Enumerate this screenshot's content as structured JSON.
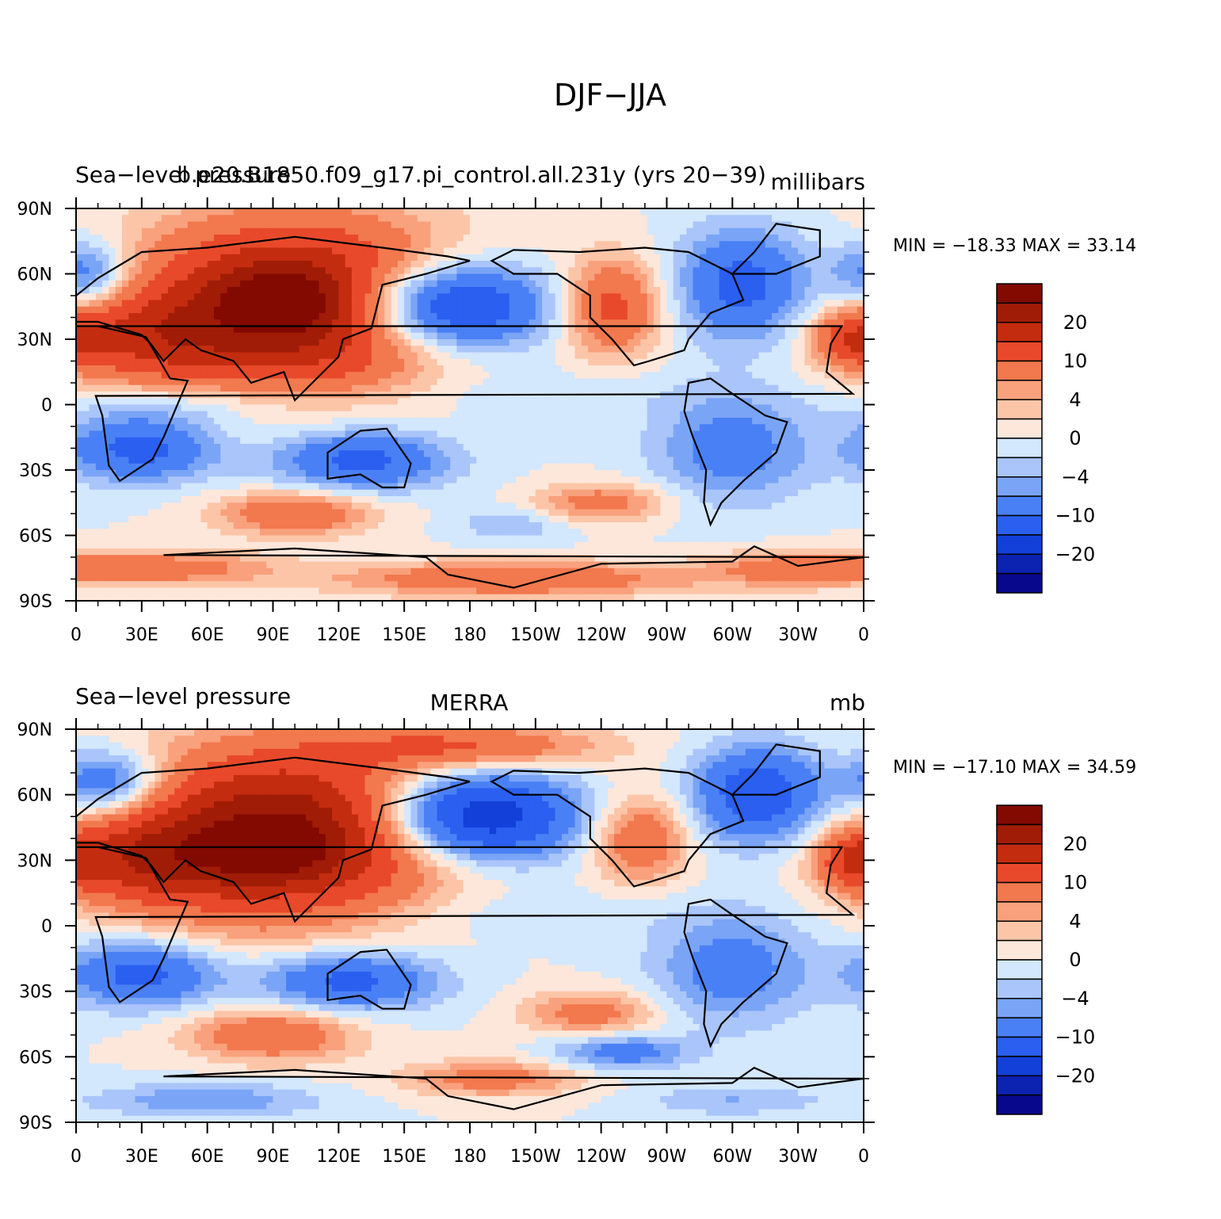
{
  "figure_title": "DJF−JJA",
  "colors": {
    "levels": [
      "#08088c",
      "#0c22b0",
      "#1240d8",
      "#2a5ff0",
      "#4a80f5",
      "#7aa4f5",
      "#a9c5fa",
      "#d3e7fd",
      "#fde7da",
      "#fcc5a8",
      "#f9a17c",
      "#f2784e",
      "#e8492a",
      "#c42c10",
      "#a01c06",
      "#820a00"
    ],
    "land_outline": "#000000"
  },
  "chart_data": [
    {
      "type": "heatmap",
      "id": "model",
      "left_title": "Sea−level pressure",
      "center_title": "b.e20.B1850.f09_g17.pi_control.all.231y (yrs 20−39)",
      "units": "millibars",
      "min_max_text": "MIN = −18.33 MAX =   33.14",
      "min": -18.33,
      "max": 33.14,
      "xlim": [
        0,
        360
      ],
      "ylim": [
        -90,
        90
      ],
      "xticks": [
        "0",
        "30E",
        "60E",
        "90E",
        "120E",
        "150E",
        "180",
        "150W",
        "120W",
        "90W",
        "60W",
        "30W",
        "0"
      ],
      "yticks": [
        "90N",
        "60N",
        "30N",
        "0",
        "30S",
        "60S",
        "90S"
      ],
      "colorbar_labels": [
        "20",
        "10",
        "4",
        "0",
        "−4",
        "−10",
        "−20"
      ],
      "features": [
        {
          "lon": 100,
          "lat": 45,
          "rx": 70,
          "ry": 38,
          "value": 26
        },
        {
          "lon": 95,
          "lat": 48,
          "rx": 28,
          "ry": 14,
          "value": 8
        },
        {
          "lon": 30,
          "lat": 30,
          "rx": 40,
          "ry": 20,
          "value": 10
        },
        {
          "lon": 5,
          "lat": 60,
          "rx": 20,
          "ry": 15,
          "value": -10
        },
        {
          "lon": 168,
          "lat": 45,
          "rx": 45,
          "ry": 20,
          "value": -22
        },
        {
          "lon": 245,
          "lat": 45,
          "rx": 22,
          "ry": 22,
          "value": 12
        },
        {
          "lon": 305,
          "lat": 55,
          "rx": 30,
          "ry": 25,
          "value": -12
        },
        {
          "lon": 355,
          "lat": 30,
          "rx": 18,
          "ry": 12,
          "value": 10
        },
        {
          "lon": 30,
          "lat": -20,
          "rx": 35,
          "ry": 15,
          "value": -12
        },
        {
          "lon": 130,
          "lat": -25,
          "rx": 40,
          "ry": 14,
          "value": -12
        },
        {
          "lon": 300,
          "lat": -20,
          "rx": 35,
          "ry": 25,
          "value": -8
        },
        {
          "lon": 100,
          "lat": -50,
          "rx": 35,
          "ry": 10,
          "value": 10
        },
        {
          "lon": 240,
          "lat": -45,
          "rx": 30,
          "ry": 9,
          "value": 8
        },
        {
          "lon": 200,
          "lat": -55,
          "rx": 25,
          "ry": 8,
          "value": -4
        },
        {
          "lon": 200,
          "lat": -80,
          "rx": 80,
          "ry": 8,
          "value": 10
        },
        {
          "lon": 40,
          "lat": -75,
          "rx": 50,
          "ry": 8,
          "value": 8
        },
        {
          "lon": 330,
          "lat": -75,
          "rx": 40,
          "ry": 8,
          "value": 8
        },
        {
          "lon": 180,
          "lat": 5,
          "rx": 100,
          "ry": 12,
          "value": -2
        },
        {
          "lon": 60,
          "lat": 0,
          "rx": 60,
          "ry": 10,
          "value": -4
        }
      ]
    },
    {
      "type": "heatmap",
      "id": "obs",
      "left_title": "Sea−level pressure",
      "center_title": "MERRA",
      "units": "mb",
      "min_max_text": "MIN = −17.10 MAX =   34.59",
      "min": -17.1,
      "max": 34.59,
      "xlim": [
        0,
        360
      ],
      "ylim": [
        -90,
        90
      ],
      "xticks": [
        "0",
        "30E",
        "60E",
        "90E",
        "120E",
        "150E",
        "180",
        "150W",
        "120W",
        "90W",
        "60W",
        "30W",
        "0"
      ],
      "yticks": [
        "90N",
        "60N",
        "30N",
        "0",
        "30S",
        "60S",
        "90S"
      ],
      "colorbar_labels": [
        "20",
        "10",
        "4",
        "0",
        "−4",
        "−10",
        "−20"
      ],
      "features": [
        {
          "lon": 95,
          "lat": 42,
          "rx": 70,
          "ry": 38,
          "value": 26
        },
        {
          "lon": 90,
          "lat": 35,
          "rx": 25,
          "ry": 12,
          "value": 8
        },
        {
          "lon": 30,
          "lat": 30,
          "rx": 40,
          "ry": 20,
          "value": 12
        },
        {
          "lon": 180,
          "lat": 82,
          "rx": 60,
          "ry": 10,
          "value": 10
        },
        {
          "lon": 15,
          "lat": 65,
          "rx": 25,
          "ry": 15,
          "value": -12
        },
        {
          "lon": 182,
          "lat": 50,
          "rx": 45,
          "ry": 20,
          "value": -22
        },
        {
          "lon": 258,
          "lat": 40,
          "rx": 22,
          "ry": 20,
          "value": 10
        },
        {
          "lon": 312,
          "lat": 60,
          "rx": 30,
          "ry": 22,
          "value": -14
        },
        {
          "lon": 355,
          "lat": 30,
          "rx": 16,
          "ry": 12,
          "value": 10
        },
        {
          "lon": 30,
          "lat": -22,
          "rx": 35,
          "ry": 15,
          "value": -12
        },
        {
          "lon": 125,
          "lat": -25,
          "rx": 40,
          "ry": 14,
          "value": -12
        },
        {
          "lon": 300,
          "lat": -20,
          "rx": 35,
          "ry": 25,
          "value": -8
        },
        {
          "lon": 90,
          "lat": -50,
          "rx": 38,
          "ry": 12,
          "value": 10
        },
        {
          "lon": 235,
          "lat": -40,
          "rx": 30,
          "ry": 10,
          "value": 8
        },
        {
          "lon": 250,
          "lat": -58,
          "rx": 30,
          "ry": 8,
          "value": -8
        },
        {
          "lon": 190,
          "lat": -70,
          "rx": 40,
          "ry": 8,
          "value": 8
        },
        {
          "lon": 60,
          "lat": -80,
          "rx": 50,
          "ry": 8,
          "value": -6
        },
        {
          "lon": 300,
          "lat": -80,
          "rx": 40,
          "ry": 7,
          "value": -4
        },
        {
          "lon": 180,
          "lat": 5,
          "rx": 100,
          "ry": 12,
          "value": -2
        }
      ]
    }
  ]
}
